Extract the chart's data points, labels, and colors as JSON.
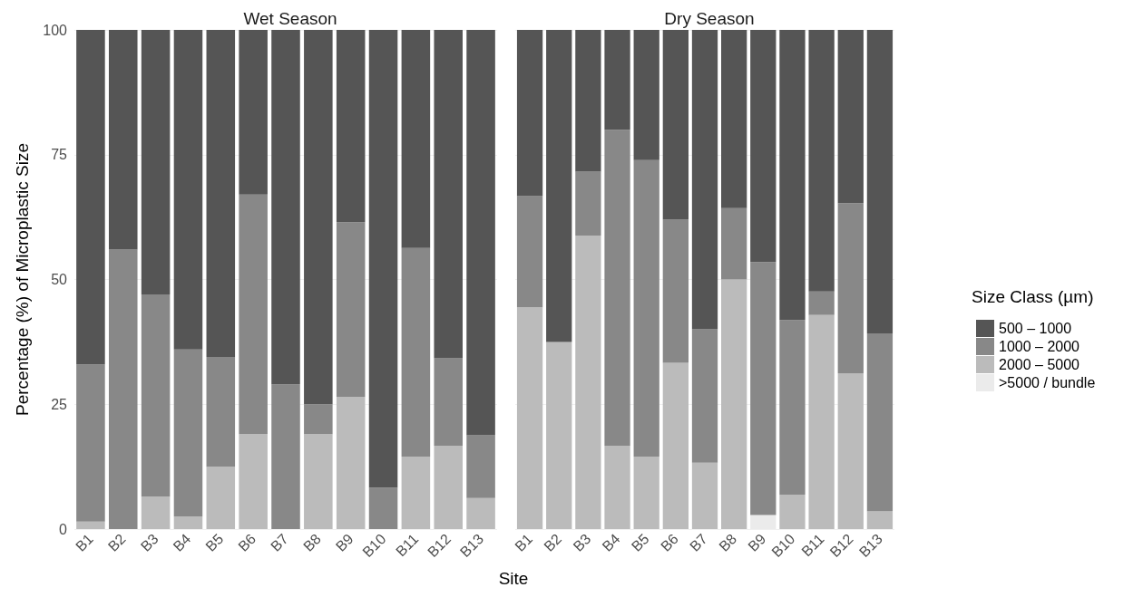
{
  "chart_data": [
    {
      "type": "bar",
      "title": "Wet Season",
      "ylabel": "Percentage (%) of Microplastic Size",
      "stacked": true,
      "grid": true,
      "legend": false,
      "categories": [
        "B1",
        "B2",
        "B3",
        "B4",
        "B5",
        "B6",
        "B7",
        "B8",
        "B9",
        "B10",
        "B11",
        "B12",
        "B13"
      ],
      "ylim": [
        0,
        100
      ],
      "yticks": [
        0,
        25,
        50,
        75,
        100
      ],
      "series": [
        {
          "color": "#ebebeb",
          "values": [
            0,
            0,
            0,
            0,
            0,
            0,
            0,
            0,
            0,
            0,
            0,
            0,
            0
          ]
        },
        {
          "color": "#bbbbbb",
          "values": [
            1.5,
            0,
            6.5,
            2.5,
            12.5,
            19,
            0,
            19,
            26.5,
            0,
            14.5,
            16.7,
            6.2
          ]
        },
        {
          "color": "#888888",
          "values": [
            31.5,
            56,
            40.5,
            33.5,
            22,
            48,
            29,
            6,
            35,
            8.3,
            41.8,
            17.5,
            12.6
          ]
        },
        {
          "color": "#555555",
          "values": [
            67,
            44,
            53,
            64,
            65.5,
            33,
            71,
            75,
            38.5,
            91.7,
            43.7,
            65.8,
            81.2
          ]
        }
      ]
    },
    {
      "type": "bar",
      "title": "Dry Season",
      "xlabel": "Site",
      "legend_title": "Size Class (µm)",
      "stacked": true,
      "grid": true,
      "legend": "right",
      "tick_labels": "x",
      "categories": [
        "B1",
        "B2",
        "B3",
        "B4",
        "B5",
        "B6",
        "B7",
        "B8",
        "B9",
        "B10",
        "B11",
        "B12",
        "B13"
      ],
      "ylim": [
        0,
        100
      ],
      "yticks": [
        0,
        25,
        50,
        75,
        100
      ],
      "series": [
        {
          "name": ">5000 / bundle",
          "color": "#ebebeb",
          "values": [
            0,
            0,
            0,
            0,
            0,
            0,
            0,
            0,
            2.8,
            0,
            0,
            0,
            0
          ]
        },
        {
          "name": "2000 – 5000",
          "color": "#bbbbbb",
          "values": [
            44.4,
            37.5,
            58.8,
            16.7,
            14.5,
            33.3,
            13.3,
            50,
            0,
            6.9,
            42.9,
            31.2,
            3.6
          ]
        },
        {
          "name": "1000 – 2000",
          "color": "#888888",
          "values": [
            22.3,
            0,
            12.8,
            63.3,
            59.4,
            28.7,
            26.7,
            14.3,
            50.7,
            35,
            4.7,
            34.1,
            35.6
          ]
        },
        {
          "name": "500 – 1000",
          "color": "#555555",
          "values": [
            33.3,
            62.5,
            28.4,
            20,
            26.1,
            38,
            60,
            35.7,
            46.5,
            58.1,
            52.4,
            34.7,
            60.8
          ]
        }
      ]
    }
  ]
}
